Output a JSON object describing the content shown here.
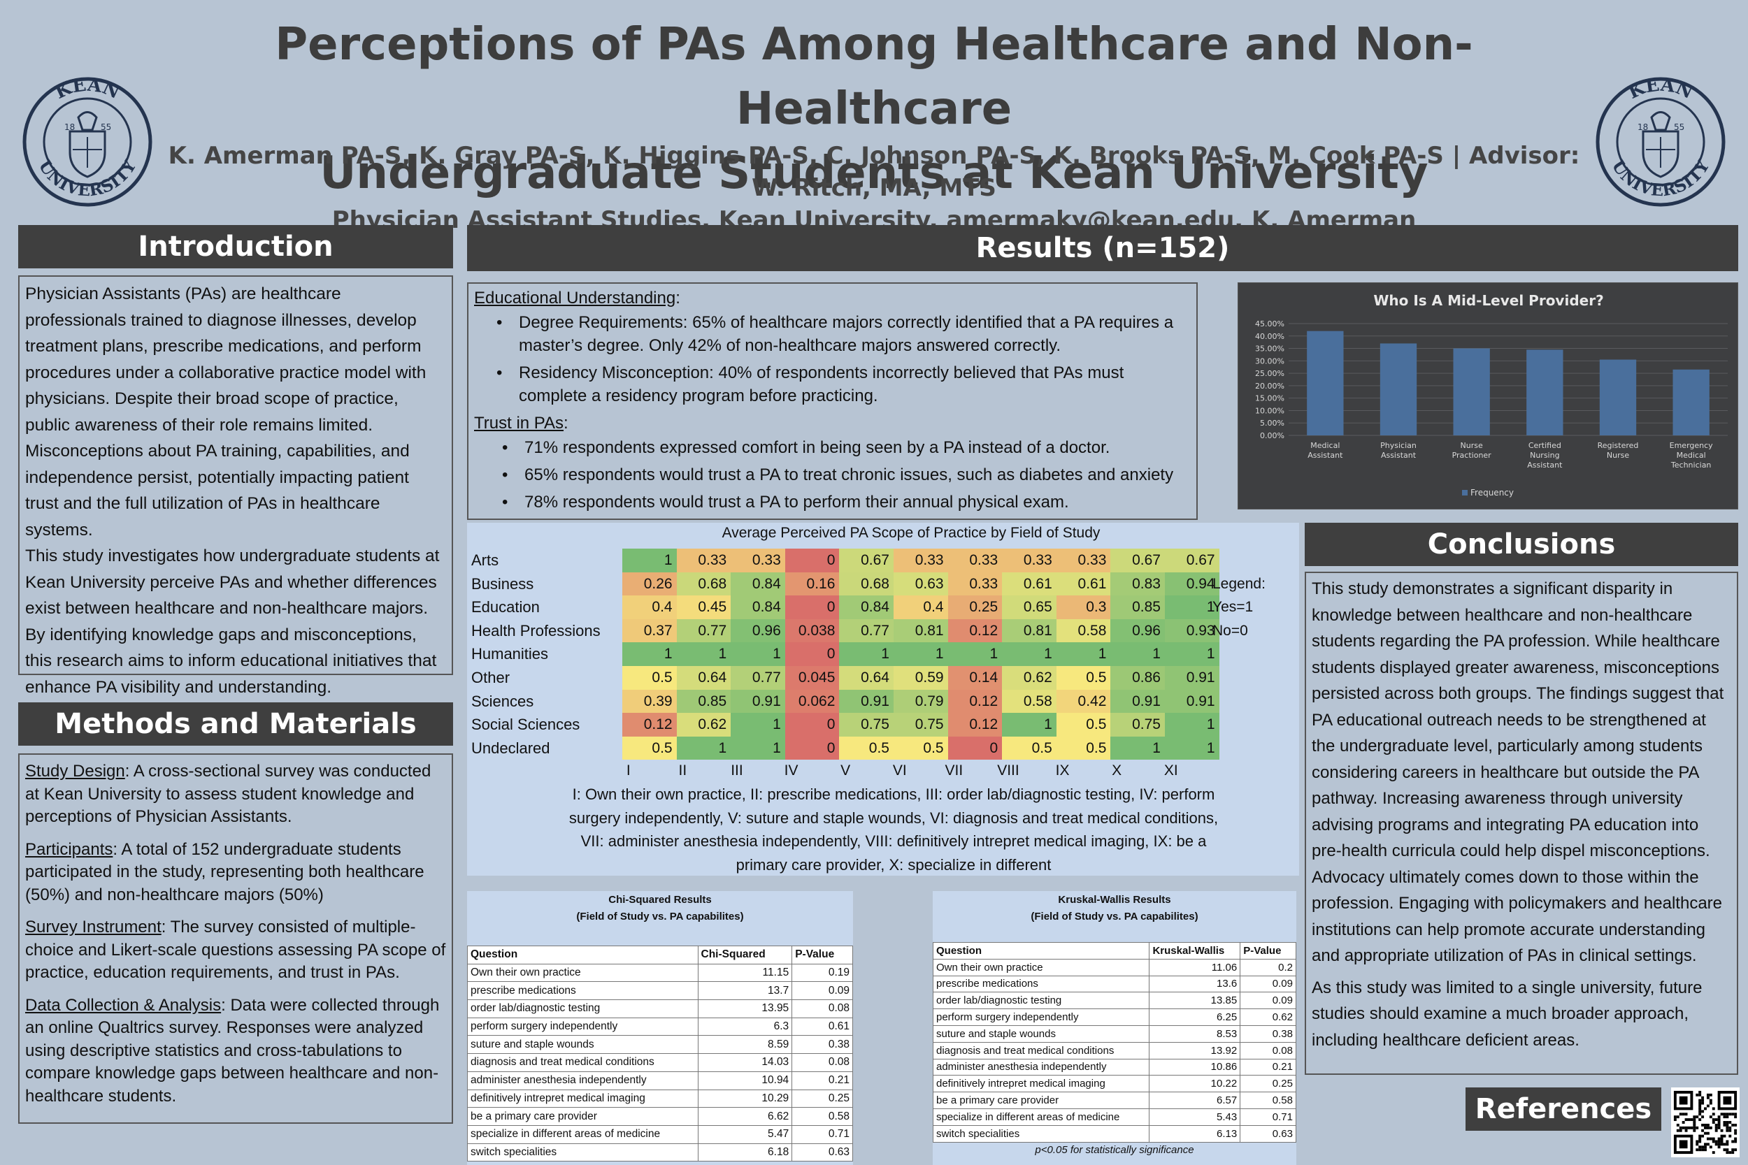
{
  "header": {
    "title_line1": "Perceptions of PAs Among Healthcare and Non-Healthcare",
    "title_line2": "Undergraduate Students at Kean University",
    "authors": "K. Amerman PA-S, K. Gray PA-S, K. Higgins PA-S, C. Johnson PA-S, K. Brooks PA-S, M. Cook PA-S | Advisor: W. Ritch, MA, MTS",
    "affiliation": "Physician Assistant Studies, Kean University, amermaky@kean.edu, K. Amerman",
    "seal": {
      "top_text": "KEAN",
      "bottom_text": "UNIVERSITY",
      "year_left": "18",
      "year_right": "55"
    }
  },
  "introduction": {
    "heading": "Introduction",
    "p1": "Physician Assistants (PAs) are healthcare professionals trained to diagnose illnesses, develop treatment plans, prescribe medications, and perform procedures under a collaborative practice model with physicians. Despite their broad scope of practice, public awareness of their role remains limited. Misconceptions about PA training, capabilities, and independence persist, potentially impacting patient trust and the full utilization of PAs in healthcare systems.",
    "p2": "This study investigates how undergraduate students at Kean University perceive PAs and whether differences exist between healthcare and non-healthcare majors. By identifying knowledge gaps and misconceptions, this research aims to inform educational initiatives that enhance PA visibility and understanding."
  },
  "methods": {
    "heading": "Methods and Materials",
    "items": [
      {
        "label": "Study Design",
        "text": ": A cross-sectional survey was conducted at Kean University to assess student knowledge and perceptions of Physician Assistants."
      },
      {
        "label": "Participants",
        "text": ": A total of 152 undergraduate students participated in the study, representing both healthcare (50%) and non-healthcare majors (50%)"
      },
      {
        "label": "Survey Instrument",
        "text": ": The survey consisted of multiple-choice and Likert-scale questions assessing PA scope of practice, education requirements, and trust in PAs."
      },
      {
        "label": "Data Collection & Analysis",
        "text": ": Data were collected through an online Qualtrics survey. Responses were analyzed using descriptive statistics and cross-tabulations to compare knowledge gaps between healthcare and non-healthcare students."
      }
    ]
  },
  "results": {
    "heading": "Results (n=152)",
    "edu_label": "Educational Understanding",
    "edu_bullets": [
      "Degree Requirements: 65% of healthcare majors correctly identified that a PA requires a master’s degree. Only 42% of non-healthcare majors answered correctly.",
      "Residency Misconception: 40% of respondents incorrectly believed that PAs must complete a residency program before practicing."
    ],
    "trust_label": "Trust in PAs",
    "trust_bullets": [
      "71% respondents expressed comfort in being seen by a PA instead of a doctor.",
      "65% respondents would trust a PA to treat chronic issues, such as diabetes and anxiety",
      "78% respondents would trust a PA to perform their annual physical exam."
    ]
  },
  "chart_data": [
    {
      "type": "bar",
      "title": "Who Is A Mid-Level Provider?",
      "categories": [
        "Medical Assistant",
        "Physician Assistant",
        "Nurse Practioner",
        "Certified Nursing Assistant",
        "Registered Nurse",
        "Emergency Medical Technician"
      ],
      "series": [
        {
          "name": "Frequency",
          "values": [
            0.42,
            0.37,
            0.35,
            0.345,
            0.305,
            0.265
          ]
        }
      ],
      "y_ticks": [
        "0.00%",
        "5.00%",
        "10.00%",
        "15.00%",
        "20.00%",
        "25.00%",
        "30.00%",
        "35.00%",
        "40.00%",
        "45.00%"
      ],
      "ylim": [
        0,
        0.45
      ],
      "legend": "bottom",
      "colors": {
        "bar": "#4a6f9c",
        "background": "#3e3f41"
      }
    },
    {
      "type": "heatmap",
      "title": "Average Perceived PA Scope of Practice by Field of Study",
      "rows": [
        "Arts",
        "Business",
        "Education",
        "Health Professions",
        "Humanities",
        "Other",
        "Sciences",
        "Social Sciences",
        "Undeclared"
      ],
      "columns": [
        "I",
        "II",
        "III",
        "IV",
        "V",
        "VI",
        "VII",
        "VIII",
        "IX",
        "X",
        "XI"
      ],
      "values": [
        [
          "1",
          "0.33",
          "0.33",
          "0",
          "0.67",
          "0.33",
          "0.33",
          "0.33",
          "0.33",
          "0.67",
          "0.67"
        ],
        [
          "0.26",
          "0.68",
          "0.84",
          "0.16",
          "0.68",
          "0.63",
          "0.33",
          "0.61",
          "0.61",
          "0.83",
          "0.94"
        ],
        [
          "0.4",
          "0.45",
          "0.84",
          "0",
          "0.84",
          "0.4",
          "0.25",
          "0.65",
          "0.3",
          "0.85",
          "1"
        ],
        [
          "0.37",
          "0.77",
          "0.96",
          "0.038",
          "0.77",
          "0.81",
          "0.12",
          "0.81",
          "0.58",
          "0.96",
          "0.93"
        ],
        [
          "1",
          "1",
          "1",
          "0",
          "1",
          "1",
          "1",
          "1",
          "1",
          "1",
          "1"
        ],
        [
          "0.5",
          "0.64",
          "0.77",
          "0.045",
          "0.64",
          "0.59",
          "0.14",
          "0.62",
          "0.5",
          "0.86",
          "0.91"
        ],
        [
          "0.39",
          "0.85",
          "0.91",
          "0.062",
          "0.91",
          "0.79",
          "0.12",
          "0.58",
          "0.42",
          "0.91",
          "0.91"
        ],
        [
          "0.12",
          "0.62",
          "1",
          "0",
          "0.75",
          "0.75",
          "0.12",
          "1",
          "0.5",
          "0.75",
          "1"
        ],
        [
          "0.5",
          "1",
          "1",
          "0",
          "0.5",
          "0.5",
          "0",
          "0.5",
          "0.5",
          "1",
          "1"
        ]
      ],
      "legend": [
        "Legend:",
        "Yes=1",
        "No=0"
      ],
      "key": "I: Own their own practice, II: prescribe medications, III: order lab/diagnostic testing, IV: perform surgery independently, V: suture and staple wounds, VI: diagnosis and treat medical conditions, VII: administer anesthesia independently, VIII: definitively intrepret medical imaging, IX: be a primary care provider, X: specialize in different",
      "colors": {
        "low": "#d96f6a",
        "mid": "#f7e87e",
        "high": "#79bc72"
      }
    }
  ],
  "chi_squared": {
    "title1": "Chi-Squared Results",
    "title2": "(Field of Study vs. PA capabilites)",
    "headers": [
      "Question",
      "Chi-Squared",
      "P-Value"
    ],
    "rows": [
      [
        "Own their own practice",
        "11.15",
        "0.19"
      ],
      [
        "prescribe medications",
        "13.7",
        "0.09"
      ],
      [
        "order lab/diagnostic testing",
        "13.95",
        "0.08"
      ],
      [
        "perform surgery independently",
        "6.3",
        "0.61"
      ],
      [
        "suture and staple wounds",
        "8.59",
        "0.38"
      ],
      [
        "diagnosis and treat medical conditions",
        "14.03",
        "0.08"
      ],
      [
        "administer anesthesia independently",
        "10.94",
        "0.21"
      ],
      [
        "definitively intrepret medical imaging",
        "10.29",
        "0.25"
      ],
      [
        "be a primary care provider",
        "6.62",
        "0.58"
      ],
      [
        "specialize in different areas of medicine",
        "5.47",
        "0.71"
      ],
      [
        "switch specialities",
        "6.18",
        "0.63"
      ]
    ]
  },
  "kruskal_wallis": {
    "title1": "Kruskal-Wallis Results",
    "title2": "(Field of Study vs. PA capabilites)",
    "headers": [
      "Question",
      "Kruskal-Wallis",
      "P-Value"
    ],
    "rows": [
      [
        "Own their own practice",
        "11.06",
        "0.2"
      ],
      [
        "prescribe medications",
        "13.6",
        "0.09"
      ],
      [
        "order lab/diagnostic testing",
        "13.85",
        "0.09"
      ],
      [
        "perform surgery independently",
        "6.25",
        "0.62"
      ],
      [
        "suture and staple wounds",
        "8.53",
        "0.38"
      ],
      [
        "diagnosis and treat medical conditions",
        "13.92",
        "0.08"
      ],
      [
        "administer anesthesia independently",
        "10.86",
        "0.21"
      ],
      [
        "definitively intrepret medical imaging",
        "10.22",
        "0.25"
      ],
      [
        "be a primary care provider",
        "6.57",
        "0.58"
      ],
      [
        "specialize in different areas of medicine",
        "5.43",
        "0.71"
      ],
      [
        "switch specialities",
        "6.13",
        "0.63"
      ]
    ],
    "note": "p<0.05 for statistically significance"
  },
  "conclusions": {
    "heading": "Conclusions",
    "p1": "This study demonstrates a significant disparity in knowledge between healthcare and non-healthcare students regarding the PA profession. While healthcare students displayed greater awareness, misconceptions persisted across both groups. The findings suggest that PA educational outreach needs to be strengthened at the undergraduate level, particularly among students considering careers in healthcare but outside the PA pathway. Increasing awareness through university advising programs and integrating PA education into pre-health curricula could help dispel misconceptions. Advocacy ultimately comes down to those within the profession. Engaging with policymakers and healthcare institutions can help promote accurate understanding and appropriate utilization of PAs in clinical settings.",
    "p2": "As this study was limited to a single university, future studies should examine a much broader approach, including healthcare deficient areas."
  },
  "references": {
    "heading": "References"
  }
}
